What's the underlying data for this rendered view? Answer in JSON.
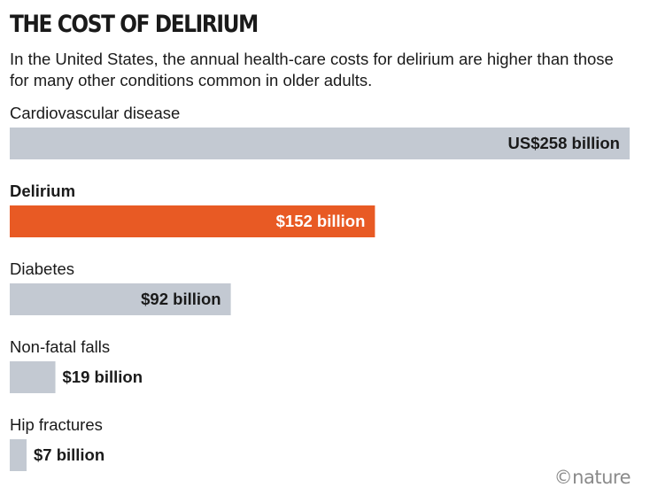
{
  "chart_data": {
    "type": "bar",
    "orientation": "horizontal",
    "title": "THE COST OF DELIRIUM",
    "subtitle": "In the United States, the annual health-care costs for delirium are higher than those for many other conditions common in older adults.",
    "categories": [
      "Cardiovascular disease",
      "Delirium",
      "Diabetes",
      "Non-fatal falls",
      "Hip fractures"
    ],
    "values": [
      258,
      152,
      92,
      19,
      7
    ],
    "value_labels": [
      "US$258 billion",
      "$152 billion",
      "$92 billion",
      "$19 billion",
      "$7 billion"
    ],
    "highlight": "Delirium",
    "xlim": [
      0,
      258
    ],
    "grid": false,
    "colors": {
      "default": "#c3c9d2",
      "highlight": "#e85a24"
    }
  },
  "credit": "©nature"
}
